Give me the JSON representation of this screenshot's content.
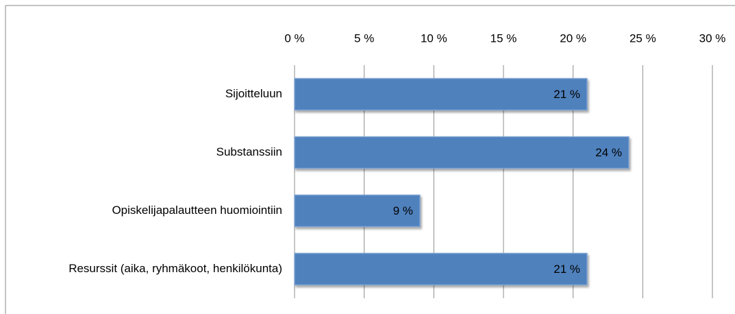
{
  "chart_data": {
    "type": "bar",
    "orientation": "horizontal",
    "categories": [
      "Sijoitteluun",
      "Substanssiin",
      "Opiskelijapalautteen huomiointiin",
      "Resurssit (aika, ryhmäkoot, henkilökunta)"
    ],
    "values": [
      21,
      24,
      9,
      21
    ],
    "value_labels": [
      "21 %",
      "24 %",
      "9 %",
      "21 %"
    ],
    "color": "#4f81bd",
    "xlim": [
      0,
      30
    ],
    "xticks": [
      {
        "value": 0,
        "label": "0 %"
      },
      {
        "value": 5,
        "label": "5 %"
      },
      {
        "value": 10,
        "label": "10 %"
      },
      {
        "value": 15,
        "label": "15 %"
      },
      {
        "value": 20,
        "label": "20 %"
      },
      {
        "value": 25,
        "label": "25 %"
      },
      {
        "value": 30,
        "label": "30 %"
      }
    ],
    "grid": true
  }
}
